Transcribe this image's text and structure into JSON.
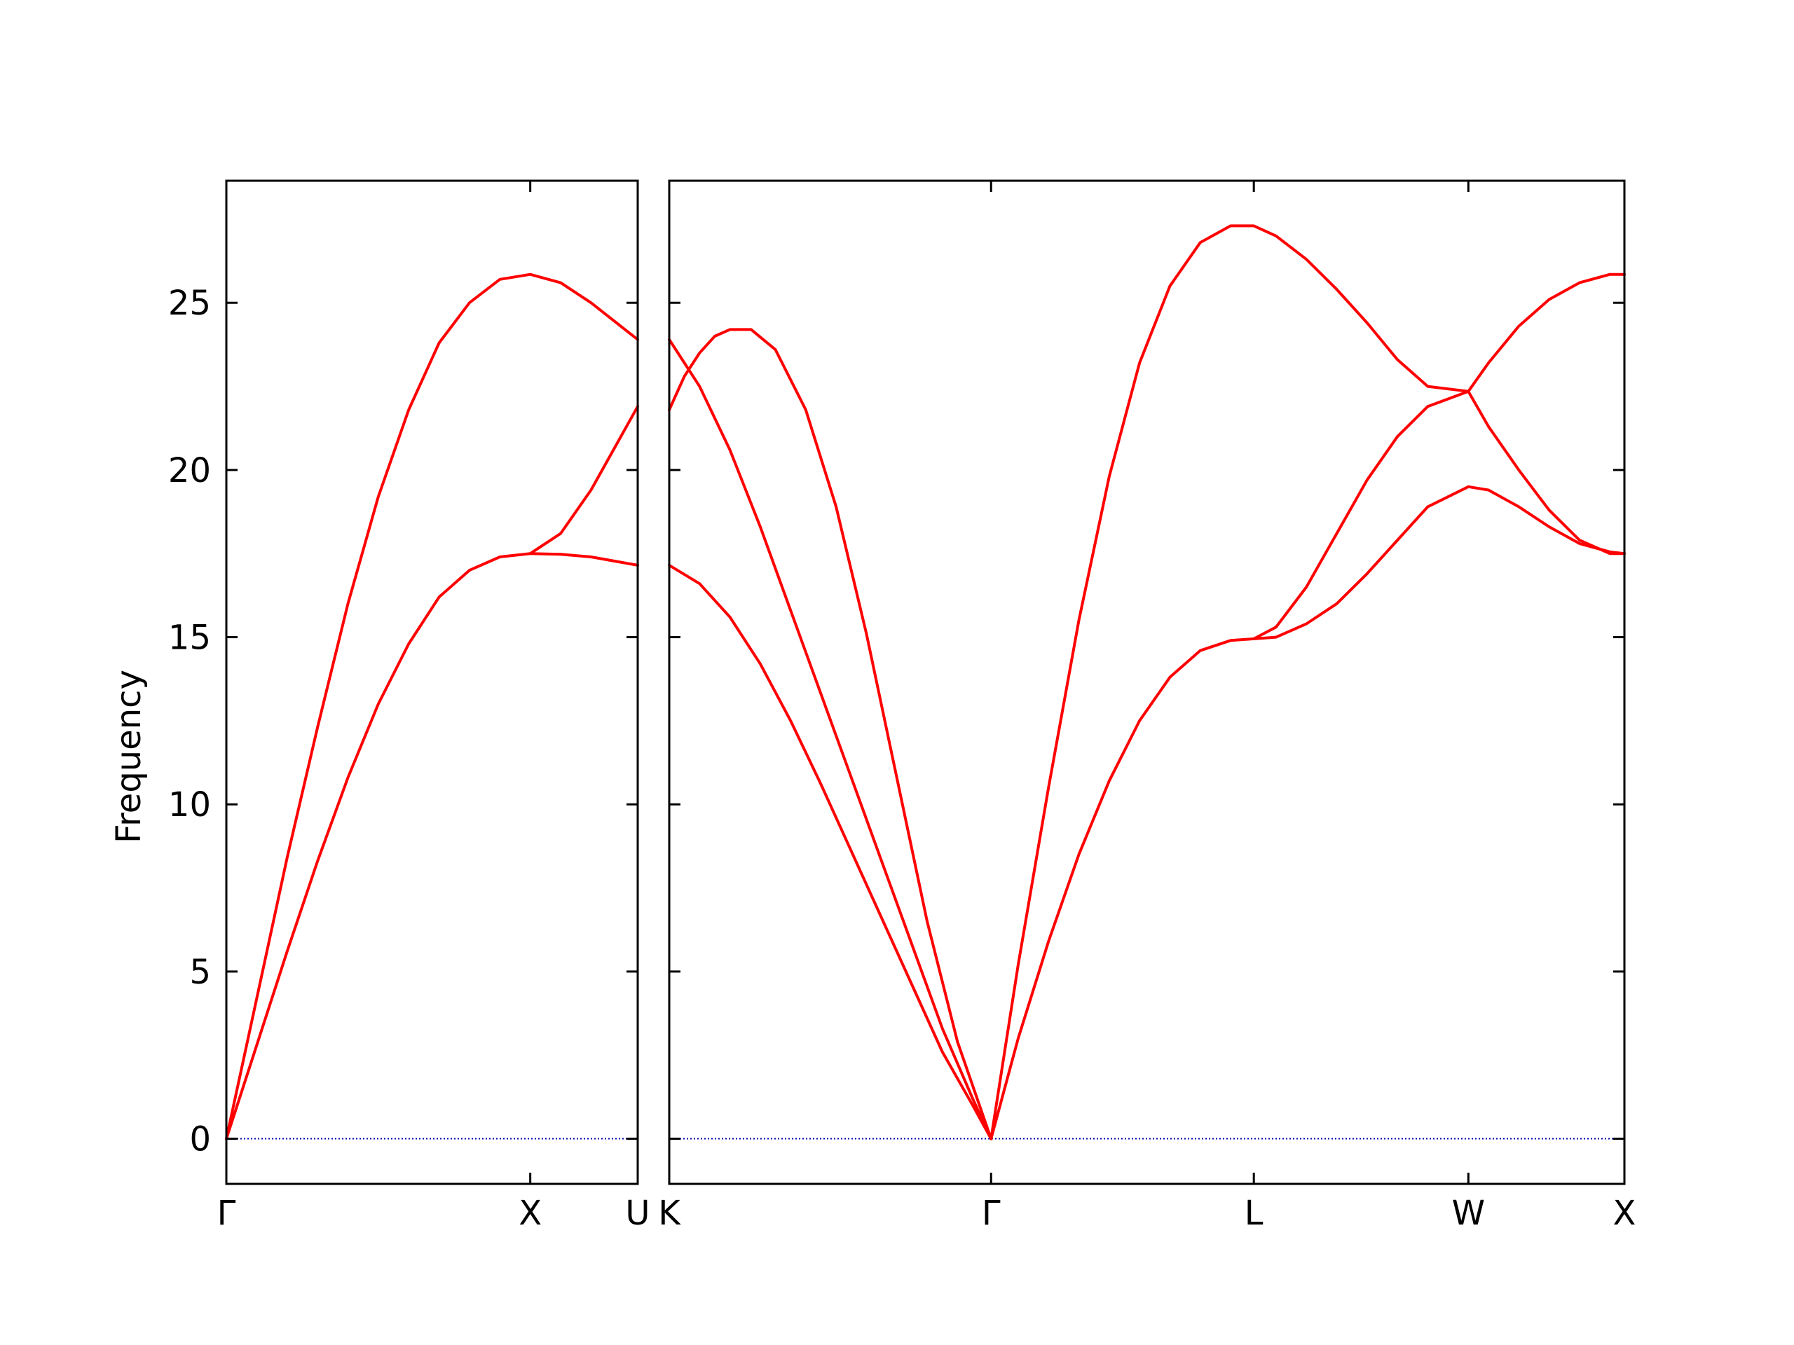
{
  "chart_data": {
    "type": "line",
    "title": "",
    "ylabel": "Frequency",
    "ylim": [
      -1.35,
      28.65
    ],
    "yticks": [
      0,
      5,
      10,
      15,
      20,
      25
    ],
    "grid": false,
    "line_color": "#ff0000",
    "zero_line_color": "#0000aa",
    "panels": [
      {
        "xlim": [
          0,
          1.3536
        ],
        "xticks": [
          {
            "pos": 0,
            "label": "Γ"
          },
          {
            "pos": 1.0,
            "label": "X"
          },
          {
            "pos": 1.3536,
            "label": "U"
          }
        ],
        "series": [
          {
            "x": [
              0,
              0.1,
              0.2,
              0.3,
              0.4,
              0.5,
              0.6,
              0.7,
              0.8,
              0.9,
              1.0,
              1.1,
              1.2,
              1.3536
            ],
            "values": [
              0,
              4.2,
              8.4,
              12.3,
              16.0,
              19.2,
              21.8,
              23.8,
              25.0,
              25.7,
              25.85,
              25.6,
              25.0,
              23.9
            ]
          },
          {
            "x": [
              0,
              0.1,
              0.2,
              0.3,
              0.4,
              0.5,
              0.6,
              0.7,
              0.8,
              0.9,
              1.0,
              1.1,
              1.2,
              1.3536
            ],
            "values": [
              0,
              2.8,
              5.6,
              8.3,
              10.8,
              13.0,
              14.8,
              16.2,
              17.0,
              17.4,
              17.5,
              18.1,
              19.4,
              21.9
            ]
          },
          {
            "x": [
              1.0,
              1.1,
              1.2,
              1.3536
            ],
            "values": [
              17.5,
              17.48,
              17.4,
              17.15
            ]
          }
        ]
      },
      {
        "xlim": [
          0,
          3.1481
        ],
        "xticks": [
          {
            "pos": 0,
            "label": "K"
          },
          {
            "pos": 1.0607,
            "label": "Γ"
          },
          {
            "pos": 1.9267,
            "label": "L"
          },
          {
            "pos": 2.6338,
            "label": "W"
          },
          {
            "pos": 3.1481,
            "label": "X"
          }
        ],
        "series": [
          {
            "x": [
              0,
              0.05,
              0.1,
              0.15,
              0.2,
              0.27,
              0.35,
              0.45,
              0.55,
              0.65,
              0.75,
              0.85,
              0.95,
              1.0607
            ],
            "values": [
              21.8,
              22.8,
              23.5,
              24.0,
              24.2,
              24.2,
              23.6,
              21.8,
              18.9,
              15.1,
              10.8,
              6.5,
              2.9,
              0
            ]
          },
          {
            "x": [
              0,
              0.1,
              0.2,
              0.3,
              0.4,
              0.5,
              0.6,
              0.7,
              0.8,
              0.9,
              1.0,
              1.0607
            ],
            "values": [
              23.9,
              22.5,
              20.6,
              18.3,
              15.8,
              13.3,
              10.8,
              8.3,
              5.8,
              3.3,
              1.2,
              0
            ]
          },
          {
            "x": [
              0,
              0.1,
              0.2,
              0.3,
              0.4,
              0.5,
              0.6,
              0.7,
              0.8,
              0.9,
              1.0,
              1.0607
            ],
            "values": [
              17.15,
              16.6,
              15.6,
              14.2,
              12.5,
              10.6,
              8.6,
              6.6,
              4.6,
              2.6,
              1.0,
              0
            ]
          },
          {
            "x": [
              1.0607,
              1.15,
              1.25,
              1.35,
              1.45,
              1.55,
              1.65,
              1.75,
              1.85,
              1.9267,
              2.0,
              2.1,
              2.2,
              2.3,
              2.4,
              2.5,
              2.6338,
              2.7,
              2.8,
              2.9,
              3.0,
              3.1,
              3.1481
            ],
            "values": [
              0,
              5.2,
              10.5,
              15.5,
              19.8,
              23.2,
              25.5,
              26.8,
              27.3,
              27.3,
              27.0,
              26.3,
              25.4,
              24.4,
              23.3,
              22.5,
              22.35,
              23.2,
              24.3,
              25.1,
              25.6,
              25.85,
              25.85
            ]
          },
          {
            "x": [
              1.0607,
              1.15,
              1.25,
              1.35,
              1.45,
              1.55,
              1.65,
              1.75,
              1.85,
              1.9267,
              2.0,
              2.1,
              2.2,
              2.3,
              2.4,
              2.5,
              2.6338,
              2.7,
              2.8,
              2.9,
              3.0,
              3.1,
              3.1481
            ],
            "values": [
              0,
              3.0,
              5.9,
              8.5,
              10.7,
              12.5,
              13.8,
              14.6,
              14.9,
              14.95,
              15.3,
              16.5,
              18.1,
              19.7,
              21.0,
              21.9,
              22.35,
              21.3,
              20.0,
              18.8,
              17.9,
              17.5,
              17.5
            ]
          },
          {
            "x": [
              1.9267,
              2.0,
              2.1,
              2.2,
              2.3,
              2.4,
              2.5,
              2.6338,
              2.7,
              2.8,
              2.9,
              3.0,
              3.1,
              3.1481
            ],
            "values": [
              14.95,
              15.0,
              15.4,
              16.0,
              16.9,
              17.9,
              18.9,
              19.5,
              19.4,
              18.9,
              18.3,
              17.8,
              17.55,
              17.5
            ]
          }
        ]
      }
    ]
  }
}
